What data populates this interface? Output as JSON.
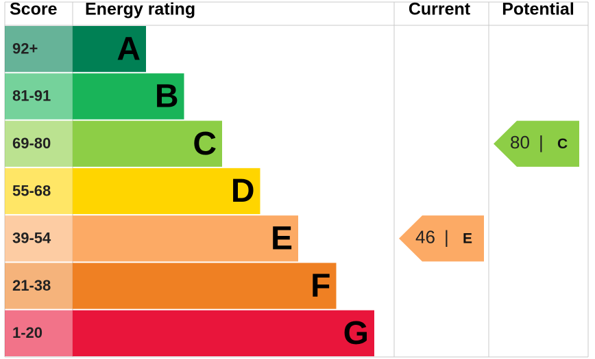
{
  "header": {
    "score": "Score",
    "rating": "Energy rating",
    "current": "Current",
    "potential": "Potential"
  },
  "bands": [
    {
      "score": "92+",
      "letter": "A",
      "color": "#008054"
    },
    {
      "score": "81-91",
      "letter": "B",
      "color": "#19b459"
    },
    {
      "score": "69-80",
      "letter": "C",
      "color": "#8dce46"
    },
    {
      "score": "55-68",
      "letter": "D",
      "color": "#ffd500"
    },
    {
      "score": "39-54",
      "letter": "E",
      "color": "#fcaa65"
    },
    {
      "score": "21-38",
      "letter": "F",
      "color": "#ef8023"
    },
    {
      "score": "1-20",
      "letter": "G",
      "color": "#e9153b"
    }
  ],
  "separator": "|",
  "current": {
    "value": 46,
    "letter": "E"
  },
  "potential": {
    "value": 80,
    "letter": "C"
  }
}
